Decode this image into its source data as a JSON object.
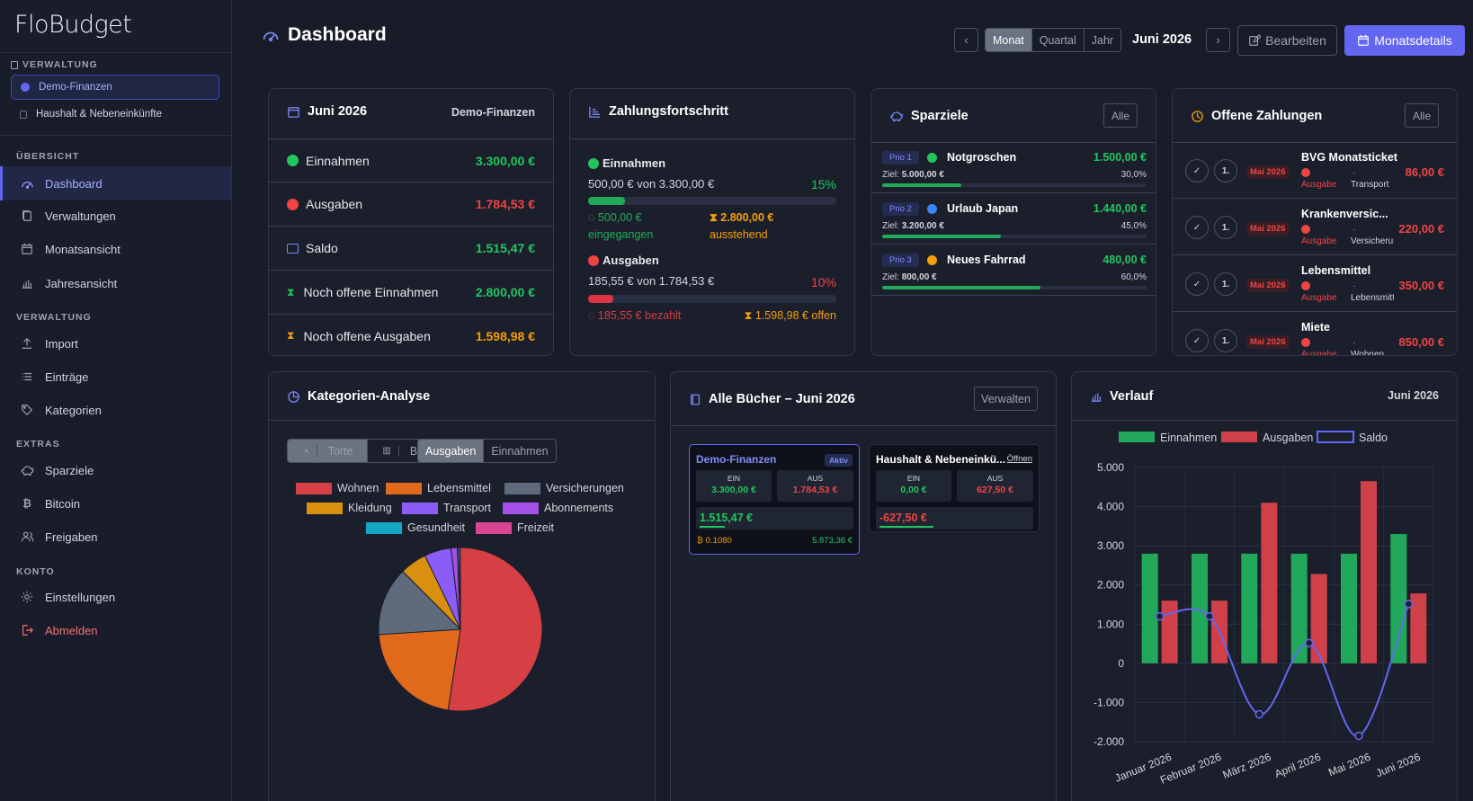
{
  "app": {
    "name": "FloBudget"
  },
  "sidebar": {
    "admin_section": "VERWALTUNG",
    "administrations": [
      {
        "label": "Demo-Finanzen",
        "selected": true
      },
      {
        "label": "Haushalt & Nebeneinkünfte",
        "selected": false
      }
    ],
    "sections": [
      {
        "title": "ÜBERSICHT",
        "items": [
          {
            "label": "Dashboard",
            "icon": "gauge-icon",
            "active": true
          },
          {
            "label": "Verwaltungen",
            "icon": "copy-icon"
          },
          {
            "label": "Monatsansicht",
            "icon": "calendar-icon"
          },
          {
            "label": "Jahresansicht",
            "icon": "bar-chart-icon"
          }
        ]
      },
      {
        "title": "VERWALTUNG",
        "items": [
          {
            "label": "Import",
            "icon": "upload-icon"
          },
          {
            "label": "Einträge",
            "icon": "list-icon"
          },
          {
            "label": "Kategorien",
            "icon": "tag-icon"
          }
        ]
      },
      {
        "title": "EXTRAS",
        "items": [
          {
            "label": "Sparziele",
            "icon": "piggy-bank-icon"
          },
          {
            "label": "Bitcoin",
            "icon": "bitcoin-icon"
          },
          {
            "label": "Freigaben",
            "icon": "users-icon"
          }
        ]
      },
      {
        "title": "KONTO",
        "items": [
          {
            "label": "Einstellungen",
            "icon": "gear-icon"
          },
          {
            "label": "Abmelden",
            "icon": "logout-icon"
          }
        ]
      }
    ]
  },
  "header": {
    "title": "Dashboard",
    "period_tabs": [
      "Monat",
      "Quartal",
      "Jahr"
    ],
    "active_period": "Monat",
    "current_period": "Juni 2026",
    "edit_label": "Bearbeiten",
    "details_label": "Monatsdetails"
  },
  "summary": {
    "title": "Juni 2026",
    "admin": "Demo-Finanzen",
    "rows": [
      {
        "label": "Einnahmen",
        "value": "3.300,00 €",
        "tone": "green",
        "icon": "plus-circle-icon"
      },
      {
        "label": "Ausgaben",
        "value": "1.784,53 €",
        "tone": "red",
        "icon": "minus-circle-icon"
      },
      {
        "label": "Saldo",
        "value": "1.515,47 €",
        "tone": "green",
        "icon": "wallet-icon"
      },
      {
        "label": "Noch offene Einnahmen",
        "value": "2.800,00 €",
        "tone": "green",
        "icon": "hourglass-icon"
      },
      {
        "label": "Noch offene Ausgaben",
        "value": "1.598,98 €",
        "tone": "amber",
        "icon": "hourglass-icon"
      }
    ]
  },
  "progress": {
    "title": "Zahlungsfortschritt",
    "income": {
      "label": "Einnahmen",
      "amount": "500,00 € von 3.300,00 €",
      "percent_label": "15%",
      "percent": 15,
      "received_value": "500,00 €",
      "received_label": "eingegangen",
      "pending_value": "2.800,00 €",
      "pending_label": "ausstehend"
    },
    "expenses": {
      "label": "Ausgaben",
      "amount": "185,55 € von 1.784,53 €",
      "percent_label": "10%",
      "percent": 10,
      "paid": "185,55 € bezahlt",
      "open": "1.598,98 € offen"
    }
  },
  "savings": {
    "title": "Sparziele",
    "all_label": "Alle",
    "goals": [
      {
        "prio": "Prio 1",
        "name": "Notgroschen",
        "color": "#22c55e",
        "amount": "1.500,00 €",
        "target_label": "Ziel:",
        "target": "5.000,00 €",
        "percent_label": "30,0%",
        "percent": 30
      },
      {
        "prio": "Prio 2",
        "name": "Urlaub Japan",
        "color": "#3b82f6",
        "amount": "1.440,00 €",
        "target_label": "Ziel:",
        "target": "3.200,00 €",
        "percent_label": "45,0%",
        "percent": 45
      },
      {
        "prio": "Prio 3",
        "name": "Neues Fahrrad",
        "color": "#f59e0b",
        "amount": "480,00 €",
        "target_label": "Ziel:",
        "target": "800,00 €",
        "percent_label": "60,0%",
        "percent": 60
      }
    ]
  },
  "open_payments": {
    "title": "Offene Zahlungen",
    "all_label": "Alle",
    "items": [
      {
        "index": "1.",
        "badge": "Mai 2026",
        "name": "BVG Monatsticket",
        "type": "Ausgabe",
        "category": "Transport",
        "amount": "86,00 €"
      },
      {
        "index": "1.",
        "badge": "Mai 2026",
        "name": "Krankenversic...",
        "type": "Ausgabe",
        "category": "Versicherun",
        "amount": "220,00 €"
      },
      {
        "index": "1.",
        "badge": "Mai 2026",
        "name": "Lebensmittel",
        "type": "Ausgabe",
        "category": "Lebensmitt",
        "amount": "350,00 €"
      },
      {
        "index": "1.",
        "badge": "Mai 2026",
        "name": "Miete",
        "type": "Ausgabe",
        "category": "Wohnen",
        "amount": "850,00 €"
      }
    ]
  },
  "categories": {
    "title": "Kategorien-Analyse",
    "view_tabs": [
      "Torte",
      "Balken"
    ],
    "type_tabs": [
      "Ausgaben",
      "Einnahmen"
    ],
    "legend": [
      {
        "name": "Wohnen",
        "color": "#d64045"
      },
      {
        "name": "Lebensmittel",
        "color": "#e0691c"
      },
      {
        "name": "Versicherungen",
        "color": "#5f6b7d"
      },
      {
        "name": "Kleidung",
        "color": "#d9900f"
      },
      {
        "name": "Transport",
        "color": "#8b5cf6"
      },
      {
        "name": "Abonnements",
        "color": "#a550e8"
      },
      {
        "name": "Gesundheit",
        "color": "#14a6c4"
      },
      {
        "name": "Freizeit",
        "color": "#d94590"
      }
    ]
  },
  "books": {
    "title": "Alle Bücher – Juni 2026",
    "manage_label": "Verwalten",
    "items": [
      {
        "name": "Demo-Finanzen",
        "badge": "Aktiv",
        "in_label": "EIN",
        "in": "3.300,00 €",
        "out_label": "AUS",
        "out": "1.784,53 €",
        "balance": "1.515,47 €",
        "btc": "₿ 0.1080",
        "btc_value": "5.873,36 €"
      },
      {
        "name": "Haushalt & Nebeneinkü...",
        "link": "Öffnen",
        "in_label": "EIN",
        "in": "0,00 €",
        "out_label": "AUS",
        "out": "627,50 €",
        "balance": "-627,50 €"
      }
    ]
  },
  "history": {
    "title": "Verlauf",
    "period": "Juni 2026"
  },
  "chart_data": [
    {
      "type": "pie",
      "title": "Kategorien-Analyse",
      "categories": [
        "Wohnen",
        "Lebensmittel",
        "Versicherungen",
        "Kleidung",
        "Transport",
        "Abonnements",
        "Gesundheit",
        "Freizeit"
      ],
      "values": [
        850,
        350,
        220,
        86,
        86,
        20,
        5,
        5
      ],
      "colors": [
        "#d64045",
        "#e0691c",
        "#5f6b7d",
        "#d9900f",
        "#8b5cf6",
        "#a550e8",
        "#14a6c4",
        "#d94590"
      ]
    },
    {
      "type": "bar",
      "title": "Verlauf",
      "categories": [
        "Januar 2026",
        "Februar 2026",
        "März 2026",
        "April 2026",
        "Mai 2026",
        "Juni 2026"
      ],
      "series": [
        {
          "name": "Einnahmen",
          "type": "bar",
          "color": "#22a85a",
          "values": [
            2800,
            2800,
            2800,
            2800,
            2800,
            3300
          ]
        },
        {
          "name": "Ausgaben",
          "type": "bar",
          "color": "#d04048",
          "values": [
            1600,
            1600,
            4100,
            2280,
            4650,
            1785
          ]
        },
        {
          "name": "Saldo",
          "type": "line",
          "color": "#6366f1",
          "values": [
            1200,
            1200,
            -1300,
            520,
            -1850,
            1515
          ]
        }
      ],
      "yticks": [
        "5.000",
        "4.000",
        "3.000",
        "2.000",
        "1.000",
        "0",
        "-1.000",
        "-2.000"
      ],
      "ylim": [
        -2000,
        5000
      ],
      "legend": "top",
      "grid": true
    }
  ]
}
